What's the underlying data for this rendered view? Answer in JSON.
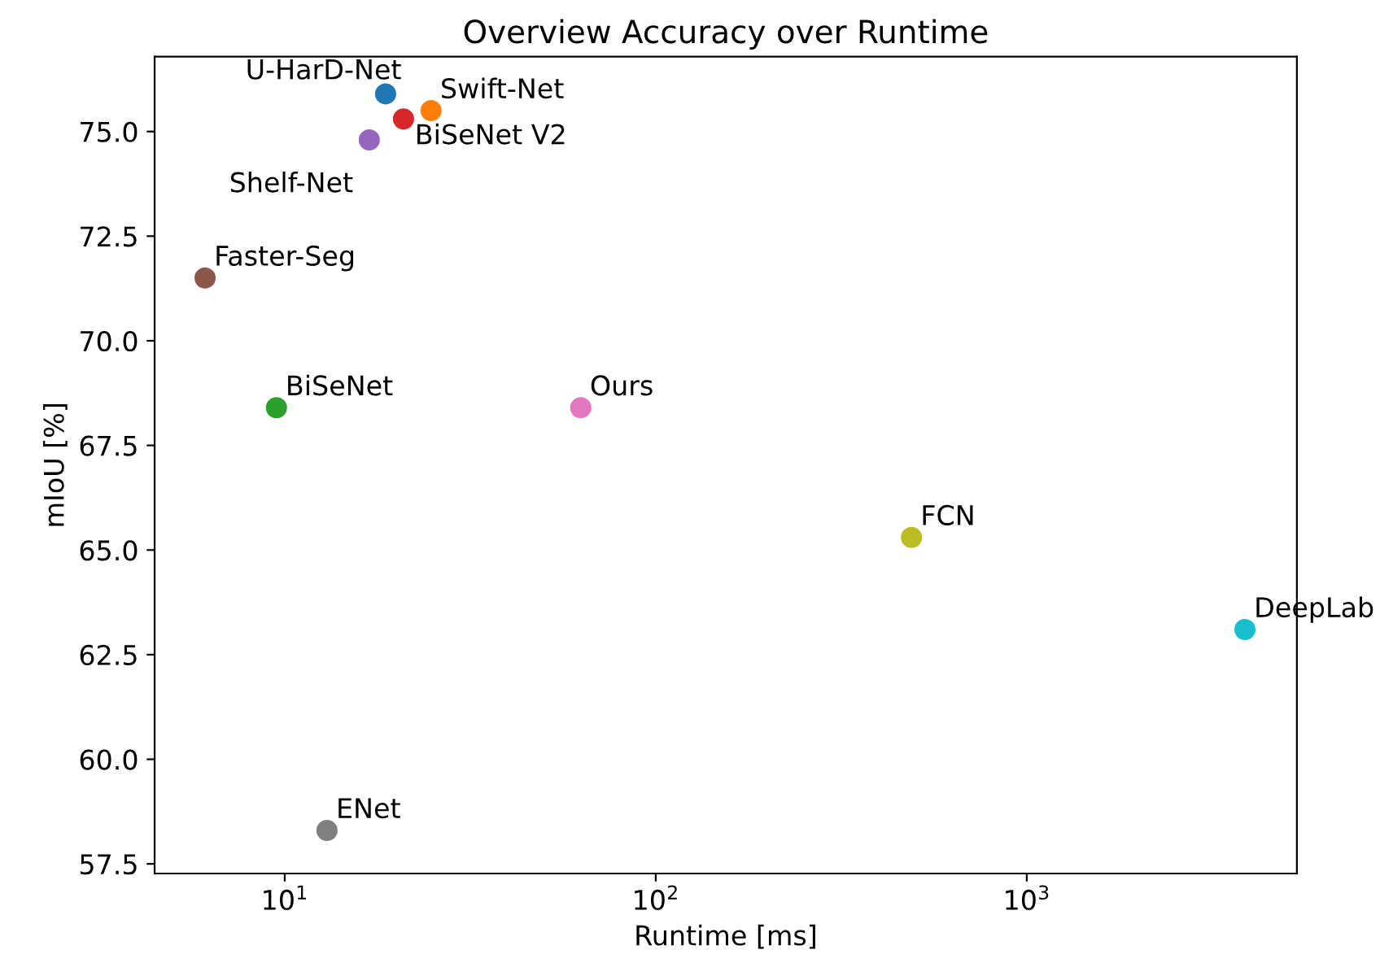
{
  "chart_data": {
    "type": "scatter",
    "title": "Overview Accuracy over Runtime",
    "xlabel": "Runtime [ms]",
    "ylabel": "mIoU [%]",
    "log": "x",
    "marker": "circle",
    "grid": false,
    "legend": false,
    "xlim": [
      4.46,
      5346
    ],
    "ylim": [
      57.27,
      76.79
    ],
    "xticks": [
      {
        "value": 10,
        "label": "10$^{1}$"
      },
      {
        "value": 100,
        "label": "10$^{2}$"
      },
      {
        "value": 1000,
        "label": "10$^{3}$"
      }
    ],
    "yticks": [
      {
        "value": 57.5,
        "label": "57.5"
      },
      {
        "value": 60,
        "label": "60.0"
      },
      {
        "value": 62.5,
        "label": "62.5"
      },
      {
        "value": 65,
        "label": "65.0"
      },
      {
        "value": 67.5,
        "label": "67.5"
      },
      {
        "value": 70,
        "label": "70.0"
      },
      {
        "value": 72.5,
        "label": "72.5"
      },
      {
        "value": 75,
        "label": "75.0"
      }
    ],
    "series": [
      {
        "name": "U-HarD-Net",
        "color": "#1f77b4",
        "x": [
          18.7
        ],
        "values": [
          75.9
        ]
      },
      {
        "name": "Swift-Net",
        "color": "#ff7f0e",
        "x": [
          24.8
        ],
        "values": [
          75.5
        ]
      },
      {
        "name": "BiSeNet",
        "color": "#2ca02c",
        "x": [
          9.5
        ],
        "values": [
          68.4
        ]
      },
      {
        "name": "BiSeNet V2",
        "color": "#d62728",
        "x": [
          20.9
        ],
        "values": [
          75.3
        ]
      },
      {
        "name": "Shelf-Net",
        "color": "#9467bd",
        "x": [
          16.9
        ],
        "values": [
          74.8
        ]
      },
      {
        "name": "Faster-Seg",
        "color": "#8c564b",
        "x": [
          6.1
        ],
        "values": [
          71.5
        ]
      },
      {
        "name": "Ours",
        "color": "#e377c2",
        "x": [
          62.8
        ],
        "values": [
          68.4
        ]
      },
      {
        "name": "ENet",
        "color": "#7f7f7f",
        "x": [
          13.0
        ],
        "values": [
          58.3
        ]
      },
      {
        "name": "FCN",
        "color": "#bcbd22",
        "x": [
          489
        ],
        "values": [
          65.3
        ]
      },
      {
        "name": "DeepLab",
        "color": "#17becf",
        "x": [
          3873
        ],
        "values": [
          63.1
        ]
      }
    ]
  }
}
